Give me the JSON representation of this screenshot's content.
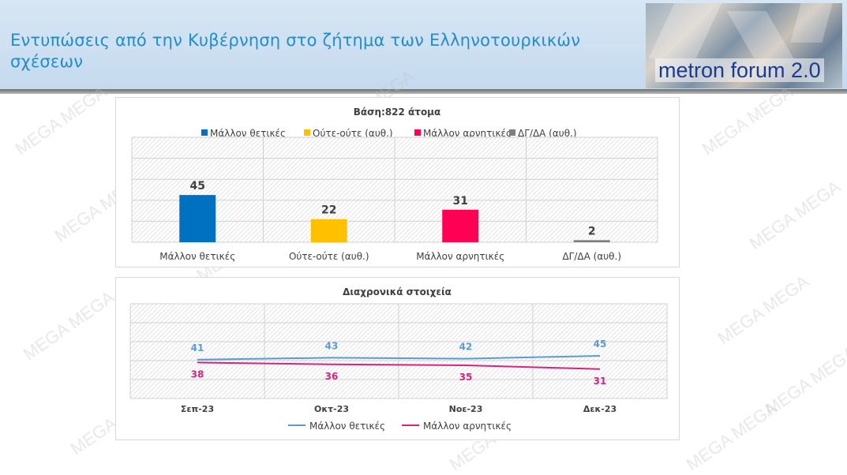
{
  "header": {
    "title": "Εντυπώσεις από την Κυβέρνηση στο ζήτημα των Ελληνοτουρκικών σχέσεων",
    "logo_text": "metron forum 2.0"
  },
  "watermark": "MEGA",
  "colors": {
    "positive": "#0070c0",
    "neutral": "#ffc000",
    "negative": "#ff0055",
    "dkna": "#7f7f7f",
    "line_positive": "#5b9bd5",
    "line_negative": "#d6247f",
    "title": "#1f8fc7"
  },
  "chart_data": [
    {
      "type": "bar",
      "title": "Βάση:822 άτομα",
      "categories": [
        "Μάλλον θετικές",
        "Ούτε-ούτε (αυθ.)",
        "Μάλλον αρνητικές",
        "ΔΓ/ΔΑ (αυθ.)"
      ],
      "legend": [
        "Μάλλον θετικές",
        "Ούτε-ούτε (αυθ.)",
        "Μάλλον αρνητικές",
        "ΔΓ/ΔΑ (αυθ.)"
      ],
      "values": [
        45,
        22,
        31,
        2
      ],
      "ylim": [
        0,
        100
      ],
      "legend_position": "top",
      "grid": true
    },
    {
      "type": "line",
      "title": "Διαχρονικά στοιχεία",
      "x": [
        "Σεπ-23",
        "Οκτ-23",
        "Νοε-23",
        "Δεκ-23"
      ],
      "series": [
        {
          "name": "Μάλλον θετικές",
          "values": [
            41,
            43,
            42,
            45
          ]
        },
        {
          "name": "Μάλλον αρνητικές",
          "values": [
            38,
            36,
            35,
            31
          ]
        }
      ],
      "ylim": [
        0,
        100
      ],
      "legend_position": "bottom",
      "grid": true
    }
  ]
}
